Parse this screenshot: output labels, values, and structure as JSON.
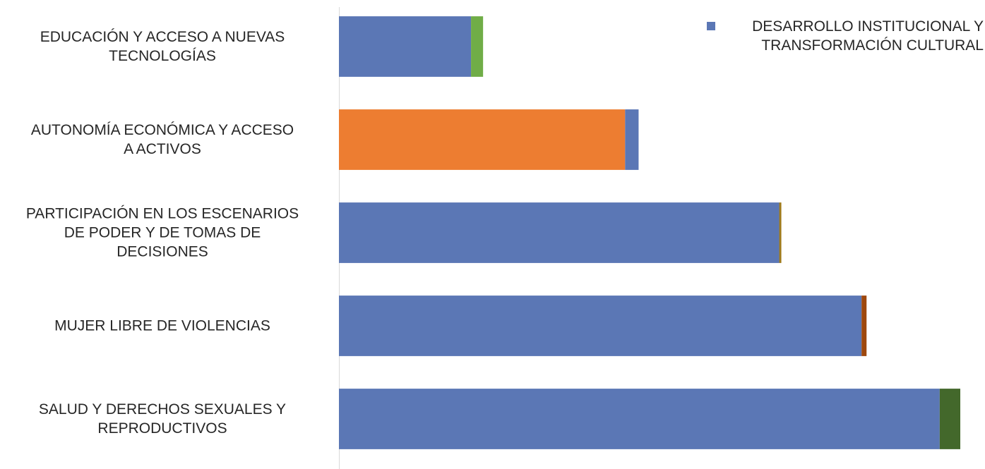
{
  "chart_data": {
    "type": "bar",
    "orientation": "horizontal",
    "stacked": true,
    "categories": [
      "EDUCACIÓN Y ACCESO A NUEVAS\nTECNOLOGÍAS",
      "AUTONOMÍA ECONÓMICA Y ACCESO\nA ACTIVOS",
      "PARTICIPACIÓN EN LOS ESCENARIOS\nDE PODER Y DE TOMAS DE\nDECISIONES",
      "MUJER LIBRE DE VIOLENCIAS",
      "SALUD Y DERECHOS SEXUALES Y\nREPRODUCTIVOS"
    ],
    "segments": [
      [
        {
          "value": 186,
          "color": "#5b77b5"
        },
        {
          "value": 17,
          "color": "#70ad47"
        }
      ],
      [
        {
          "value": 403,
          "color": "#ed7d31"
        },
        {
          "value": 19,
          "color": "#5b77b5"
        }
      ],
      [
        {
          "value": 620,
          "color": "#5b77b5"
        },
        {
          "value": 3,
          "color": "#9e7a1c"
        }
      ],
      [
        {
          "value": 736,
          "color": "#5b77b5"
        },
        {
          "value": 7,
          "color": "#9e480e"
        }
      ],
      [
        {
          "value": 846,
          "color": "#5b77b5"
        },
        {
          "value": 29,
          "color": "#43682b"
        }
      ]
    ],
    "xlim": [
      0,
      875
    ],
    "grid": false,
    "legend": {
      "position": "top-right",
      "entries": [
        {
          "name": "DESARROLLO INSTITUCIONAL Y TRANSFORMACIÓN CULTURAL",
          "color": "#5b77b5"
        }
      ]
    }
  }
}
